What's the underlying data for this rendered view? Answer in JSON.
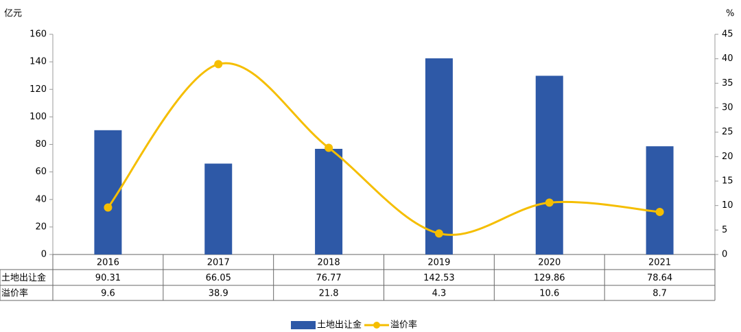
{
  "chart_data": {
    "type": "bar",
    "y_label": "亿元",
    "y2_label": "%",
    "categories": [
      "2016",
      "2017",
      "2018",
      "2019",
      "2020",
      "2021"
    ],
    "series": [
      {
        "name": "土地出让金",
        "type": "bar",
        "color": "#2e59a7",
        "values": [
          90.31,
          66.05,
          76.77,
          142.53,
          129.86,
          78.64
        ]
      },
      {
        "name": "溢价率",
        "type": "line",
        "axis": "y2",
        "color": "#f5be00",
        "values": [
          9.6,
          38.9,
          21.8,
          4.3,
          10.6,
          8.7
        ]
      }
    ],
    "ylim": [
      0,
      160
    ],
    "yticks": [
      0,
      20,
      40,
      60,
      80,
      100,
      120,
      140,
      160
    ],
    "y2lim": [
      0,
      45
    ],
    "y2ticks": [
      0,
      5,
      10,
      15,
      20,
      25,
      30,
      35,
      40,
      45
    ],
    "legend": "bottom"
  }
}
